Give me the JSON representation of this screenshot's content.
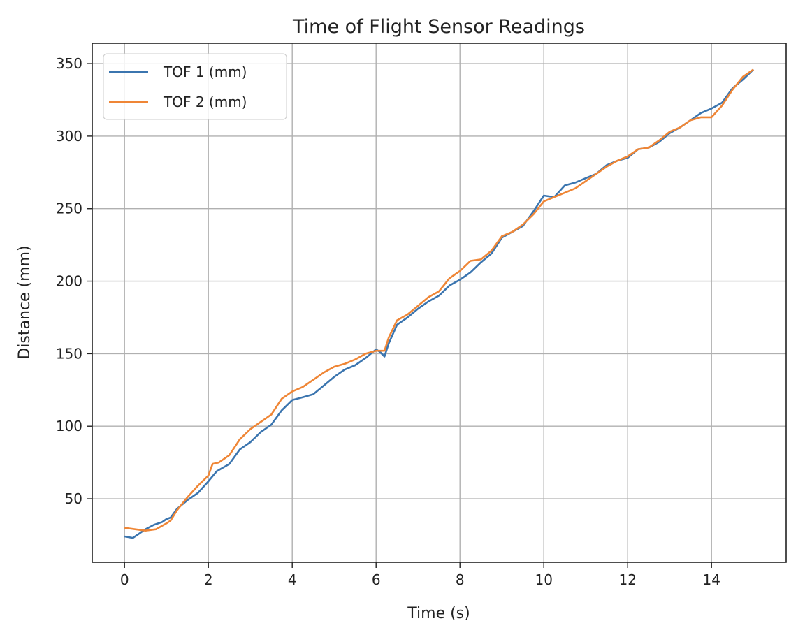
{
  "chart_data": {
    "type": "line",
    "title": "Time of Flight Sensor Readings",
    "xlabel": "Time (s)",
    "ylabel": "Distance (mm)",
    "xlim": [
      -0.77,
      15.78
    ],
    "ylim": [
      6.2,
      364
    ],
    "xticks": [
      0,
      2,
      4,
      6,
      8,
      10,
      12,
      14
    ],
    "yticks": [
      50,
      100,
      150,
      200,
      250,
      300,
      350
    ],
    "grid": true,
    "legend_position": "top-left",
    "series": [
      {
        "name": "TOF 1 (mm)",
        "color": "#3b75af",
        "x": [
          0,
          0.2,
          0.3,
          0.5,
          0.7,
          0.9,
          1.0,
          1.1,
          1.25,
          1.5,
          1.75,
          2.0,
          2.2,
          2.5,
          2.75,
          3.0,
          3.25,
          3.5,
          3.75,
          4.0,
          4.25,
          4.5,
          4.75,
          5.0,
          5.25,
          5.5,
          5.75,
          6.0,
          6.1,
          6.2,
          6.3,
          6.5,
          6.75,
          7.0,
          7.25,
          7.5,
          7.75,
          8.0,
          8.25,
          8.5,
          8.75,
          9.0,
          9.25,
          9.5,
          9.75,
          10.0,
          10.25,
          10.5,
          10.75,
          11.0,
          11.25,
          11.5,
          11.75,
          12.0,
          12.25,
          12.5,
          12.75,
          13.0,
          13.25,
          13.5,
          13.75,
          14.0,
          14.25,
          14.5,
          14.75,
          15.0
        ],
        "y": [
          24,
          23,
          25,
          29,
          32,
          34,
          36,
          37,
          43,
          49,
          54,
          62,
          69,
          74,
          84,
          89,
          96,
          101,
          111,
          118,
          120,
          122,
          128,
          134,
          139,
          142,
          147,
          153,
          151,
          148,
          157,
          170,
          175,
          181,
          186,
          190,
          197,
          201,
          206,
          213,
          219,
          230,
          234,
          238,
          248,
          259,
          258,
          266,
          268,
          271,
          274,
          280,
          283,
          285,
          291,
          292,
          296,
          302,
          306,
          311,
          316,
          319,
          323,
          333,
          339,
          346
        ]
      },
      {
        "name": "TOF 2 (mm)",
        "color": "#ef8636",
        "x": [
          0,
          0.25,
          0.5,
          0.75,
          1.0,
          1.1,
          1.25,
          1.5,
          1.75,
          2.0,
          2.1,
          2.25,
          2.5,
          2.75,
          3.0,
          3.25,
          3.5,
          3.75,
          4.0,
          4.25,
          4.5,
          4.75,
          5.0,
          5.25,
          5.5,
          5.75,
          6.0,
          6.2,
          6.3,
          6.5,
          6.75,
          7.0,
          7.25,
          7.5,
          7.75,
          8.0,
          8.25,
          8.5,
          8.75,
          9.0,
          9.25,
          9.5,
          9.75,
          10.0,
          10.25,
          10.5,
          10.75,
          11.0,
          11.25,
          11.5,
          11.75,
          12.0,
          12.25,
          12.5,
          12.75,
          13.0,
          13.25,
          13.5,
          13.75,
          14.0,
          14.25,
          14.5,
          14.75,
          15.0
        ],
        "y": [
          30,
          29,
          28,
          29,
          33,
          35,
          42,
          51,
          59,
          66,
          74,
          75,
          80,
          91,
          98,
          103,
          108,
          119,
          124,
          127,
          132,
          137,
          141,
          143,
          146,
          150,
          152,
          152,
          161,
          173,
          177,
          183,
          189,
          193,
          202,
          207,
          214,
          215,
          221,
          231,
          234,
          239,
          246,
          255,
          258,
          261,
          264,
          269,
          274,
          279,
          283,
          286,
          291,
          292,
          297,
          303,
          306,
          311,
          313,
          313,
          321,
          332,
          341,
          346
        ]
      }
    ]
  }
}
